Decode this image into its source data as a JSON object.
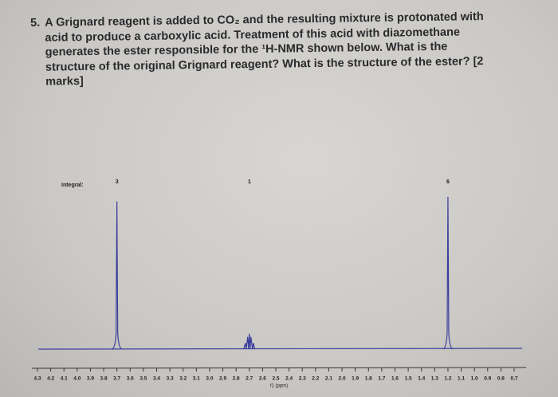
{
  "question": {
    "number": "5.",
    "text": "A Grignard reagent is added to CO₂ and the resulting mixture is protonated with acid to produce a carboxylic acid. Treatment of this acid with diazomethane generates the ester responsible for the ¹H-NMR shown below. What is the structure of the original Grignard reagent? What is the structure of the ester? [2 marks]"
  },
  "chart_data": {
    "type": "nmr",
    "xlabel": "f1 (ppm)",
    "integral_label": "Integral:",
    "x": [
      3.7,
      2.7,
      1.2
    ],
    "values": [
      96,
      10,
      99
    ],
    "integrals": [
      3,
      1,
      6
    ],
    "color": "#3a3d9c",
    "xlim": [
      4.3,
      0.7
    ],
    "ylim": [
      0,
      100
    ],
    "xticks": [
      4.3,
      4.2,
      4.1,
      {
        "value": 4,
        "label": "4.0"
      },
      3.9,
      3.8,
      3.7,
      3.6,
      3.5,
      3.4,
      3.3,
      3.2,
      3.1,
      {
        "value": 3,
        "label": "3.0"
      },
      2.9,
      2.8,
      2.7,
      2.6,
      2.5,
      2.4,
      2.3,
      2.2,
      2.1,
      {
        "value": 2,
        "label": "2.0"
      },
      1.9,
      1.8,
      1.7,
      1.6,
      1.5,
      1.4,
      1.3,
      1.2,
      1.1,
      {
        "value": 1,
        "label": "1.0"
      },
      0.9,
      0.8,
      0.7
    ]
  }
}
